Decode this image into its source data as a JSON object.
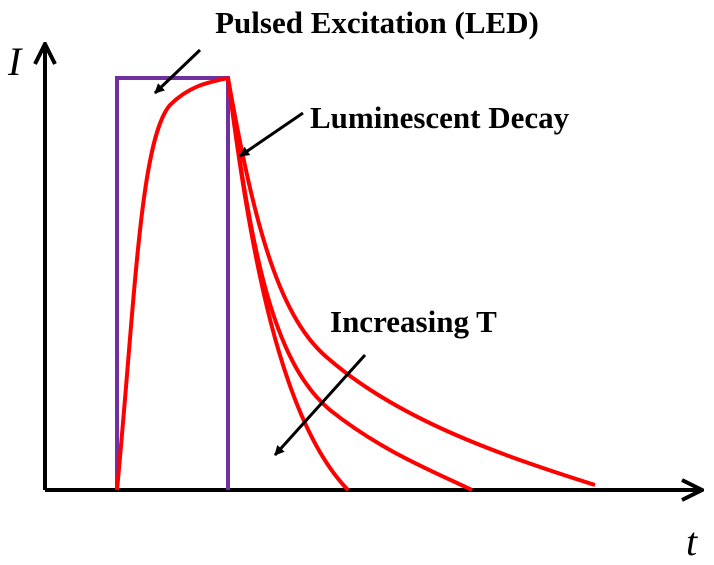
{
  "title": "Pulsed Excitation (LED)",
  "y_axis_label": "I",
  "x_axis_label": "t",
  "annotations": {
    "decay": "Luminescent Decay",
    "temperature": "Increasing T"
  }
}
